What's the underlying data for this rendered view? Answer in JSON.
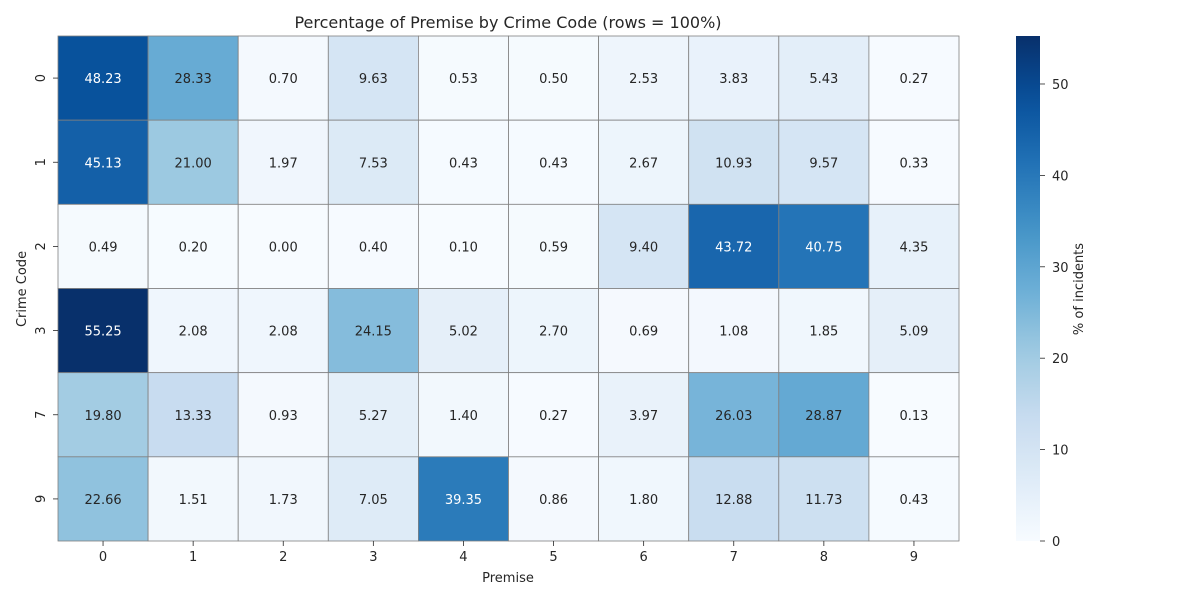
{
  "chart_data": {
    "type": "heatmap",
    "title": "Percentage of Premise by Crime Code (rows = 100%)",
    "xlabel": "Premise",
    "ylabel": "Crime Code",
    "x_categories": [
      "0",
      "1",
      "2",
      "3",
      "4",
      "5",
      "6",
      "7",
      "8",
      "9"
    ],
    "y_categories": [
      "0",
      "1",
      "2",
      "3",
      "7",
      "9"
    ],
    "values": [
      [
        48.23,
        28.33,
        0.7,
        9.63,
        0.53,
        0.5,
        2.53,
        3.83,
        5.43,
        0.27
      ],
      [
        45.13,
        21.0,
        1.97,
        7.53,
        0.43,
        0.43,
        2.67,
        10.93,
        9.57,
        0.33
      ],
      [
        0.49,
        0.2,
        0.0,
        0.4,
        0.1,
        0.59,
        9.4,
        43.72,
        40.75,
        4.35
      ],
      [
        55.25,
        2.08,
        2.08,
        24.15,
        5.02,
        2.7,
        0.69,
        1.08,
        1.85,
        5.09
      ],
      [
        19.8,
        13.33,
        0.93,
        5.27,
        1.4,
        0.27,
        3.97,
        26.03,
        28.87,
        0.13
      ],
      [
        22.66,
        1.51,
        1.73,
        7.05,
        39.35,
        0.86,
        1.8,
        12.88,
        11.73,
        0.43
      ]
    ],
    "colorbar": {
      "label": "% of incidents",
      "range": [
        0,
        55.25
      ],
      "ticks": [
        0,
        10,
        20,
        30,
        40,
        50
      ]
    },
    "colormap": "Blues",
    "grid": true,
    "cell_border_color": "#808080"
  }
}
